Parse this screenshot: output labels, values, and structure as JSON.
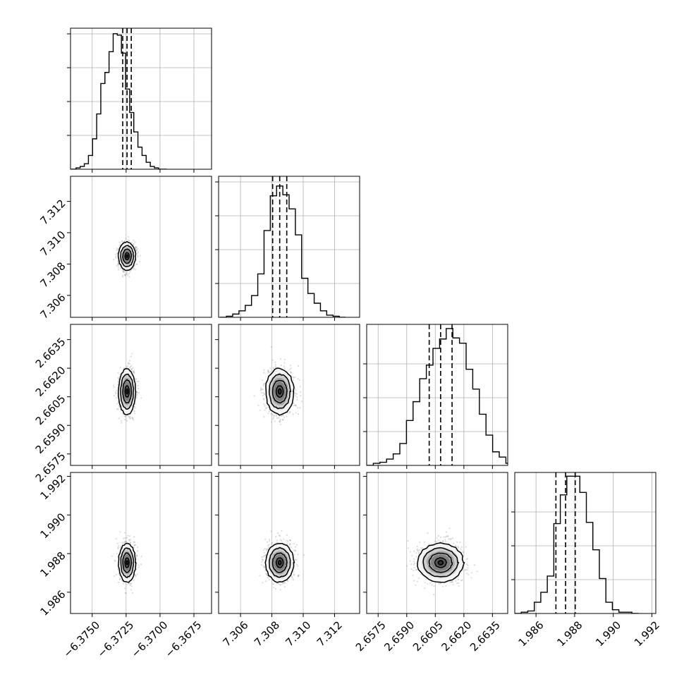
{
  "chart_data": {
    "type": "corner",
    "parameters": [
      {
        "index": 0,
        "median": -6.37243,
        "quantile_16": -6.37275,
        "quantile_84": -6.37212,
        "histogram": {
          "range": [
            -6.3768,
            -6.3695
          ],
          "counts": [
            0,
            0,
            1,
            2,
            4,
            10,
            22,
            40,
            62,
            70,
            85,
            98,
            97,
            84,
            58,
            41,
            27,
            16,
            10,
            5,
            2,
            1,
            0,
            0
          ],
          "ymax": 102
        },
        "xlim": [
          -6.3766,
          -6.3662
        ],
        "xticks": [
          -6.375,
          -6.3725,
          -6.37,
          -6.3675
        ],
        "xtick_labels": [
          "−6.3750",
          "−6.3725",
          "−6.3700",
          "−6.3675"
        ],
        "ytick_fracs": [
          0.25,
          0.5,
          0.75,
          1.0
        ]
      },
      {
        "index": 1,
        "median": 7.3085,
        "quantile_16": 7.30805,
        "quantile_84": 7.30895,
        "histogram": {
          "range": [
            7.3047,
            7.3127
          ],
          "counts": [
            0,
            1,
            3,
            6,
            11,
            20,
            40,
            80,
            112,
            121,
            113,
            100,
            76,
            36,
            22,
            13,
            6,
            2,
            1,
            0
          ],
          "ymax": 130
        },
        "xlim": [
          7.3046,
          7.3136
        ],
        "xticks": [
          7.306,
          7.308,
          7.31,
          7.312
        ],
        "xtick_labels": [
          "7.306",
          "7.308",
          "7.310",
          "7.312"
        ],
        "yticks": [
          7.306,
          7.308,
          7.31,
          7.312
        ],
        "ytick_labels": [
          "7.306",
          "7.308",
          "7.310",
          "7.312"
        ],
        "ytick_fracs": [
          0.25,
          0.5,
          0.75,
          1.0
        ]
      },
      {
        "index": 2,
        "median": 2.66078,
        "quantile_16": 2.66018,
        "quantile_84": 2.66138,
        "histogram": {
          "range": [
            2.6569,
            2.6649
          ],
          "counts": [
            0,
            2,
            3,
            6,
            11,
            21,
            43,
            61,
            83,
            96,
            112,
            121,
            131,
            122,
            117,
            92,
            73,
            49,
            29,
            13,
            8,
            2,
            1
          ],
          "ymax": 135
        },
        "xlim": [
          2.6569,
          2.6643
        ],
        "xticks": [
          2.6575,
          2.659,
          2.6605,
          2.662,
          2.6635
        ],
        "xtick_labels": [
          "2.6575",
          "2.6590",
          "2.6605",
          "2.6620",
          "2.6635"
        ],
        "yticks": [
          2.6575,
          2.659,
          2.6605,
          2.662,
          2.6635
        ],
        "ytick_labels": [
          "2.6575",
          "2.6590",
          "2.6605",
          "2.6620",
          "2.6635"
        ],
        "ytick_fracs": [
          0.25,
          0.5,
          0.75
        ]
      },
      {
        "index": 3,
        "median": 1.98753,
        "quantile_16": 1.98703,
        "quantile_84": 1.98803,
        "histogram": {
          "range": [
            1.9849,
            1.9913
          ],
          "counts": [
            0,
            1,
            2,
            9,
            17,
            30,
            72,
            95,
            110,
            110,
            97,
            73,
            51,
            28,
            9,
            3,
            1,
            1,
            0
          ],
          "ymax": 113
        },
        "xlim": [
          1.9849,
          1.9922
        ],
        "xticks": [
          1.986,
          1.988,
          1.99,
          1.992
        ],
        "xtick_labels": [
          "1.986",
          "1.988",
          "1.990",
          "1.992"
        ],
        "yticks": [
          1.986,
          1.988,
          1.99,
          1.992
        ],
        "ytick_labels": [
          "1.986",
          "1.988",
          "1.990",
          "1.992"
        ],
        "ytick_fracs": [
          0.25,
          0.5,
          0.75
        ]
      }
    ],
    "title": "",
    "xlabel": "",
    "ylabel": "",
    "grid": true,
    "quantiles": [
      0.16,
      0.5,
      0.84
    ],
    "colors": {
      "line": "#000000",
      "grid": "#b0b0b0",
      "density_dark": "#1a1a1a",
      "density_light": "#ffffff",
      "points": "#999999"
    }
  }
}
